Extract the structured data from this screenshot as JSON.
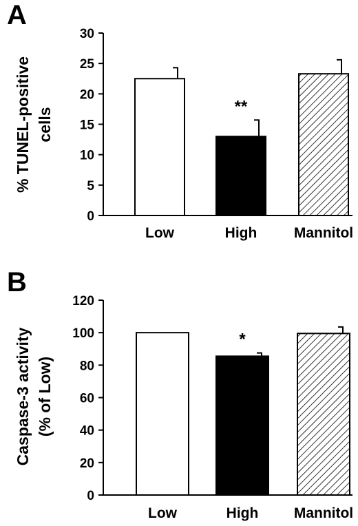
{
  "chart_data": [
    {
      "panel": "A",
      "type": "bar",
      "categories": [
        "Low",
        "High",
        "Mannitol"
      ],
      "values": [
        22.5,
        13.0,
        23.3
      ],
      "errors": [
        1.8,
        2.7,
        2.3
      ],
      "significance": [
        "",
        "**",
        ""
      ],
      "ylabel_lines": [
        "% TUNEL-positive",
        "cells"
      ],
      "ylim": [
        0,
        30
      ],
      "yticks": [
        "0",
        "5",
        "10",
        "15",
        "20",
        "25",
        "30"
      ],
      "bar_fills": [
        "white",
        "black",
        "hatched"
      ]
    },
    {
      "panel": "B",
      "type": "bar",
      "categories": [
        "Low",
        "High",
        "Mannitol"
      ],
      "values": [
        100,
        85.5,
        99.5
      ],
      "errors": [
        0,
        2.0,
        4.0
      ],
      "significance": [
        "",
        "*",
        ""
      ],
      "ylabel_lines": [
        "Caspase-3 activity",
        "(% of Low)"
      ],
      "ylim": [
        0,
        120
      ],
      "yticks": [
        "0",
        "20",
        "40",
        "60",
        "80",
        "100",
        "120"
      ],
      "bar_fills": [
        "white",
        "black",
        "hatched"
      ]
    }
  ],
  "colors": {
    "axis": "#000000",
    "bar_open": "#ffffff",
    "bar_solid": "#000000"
  }
}
